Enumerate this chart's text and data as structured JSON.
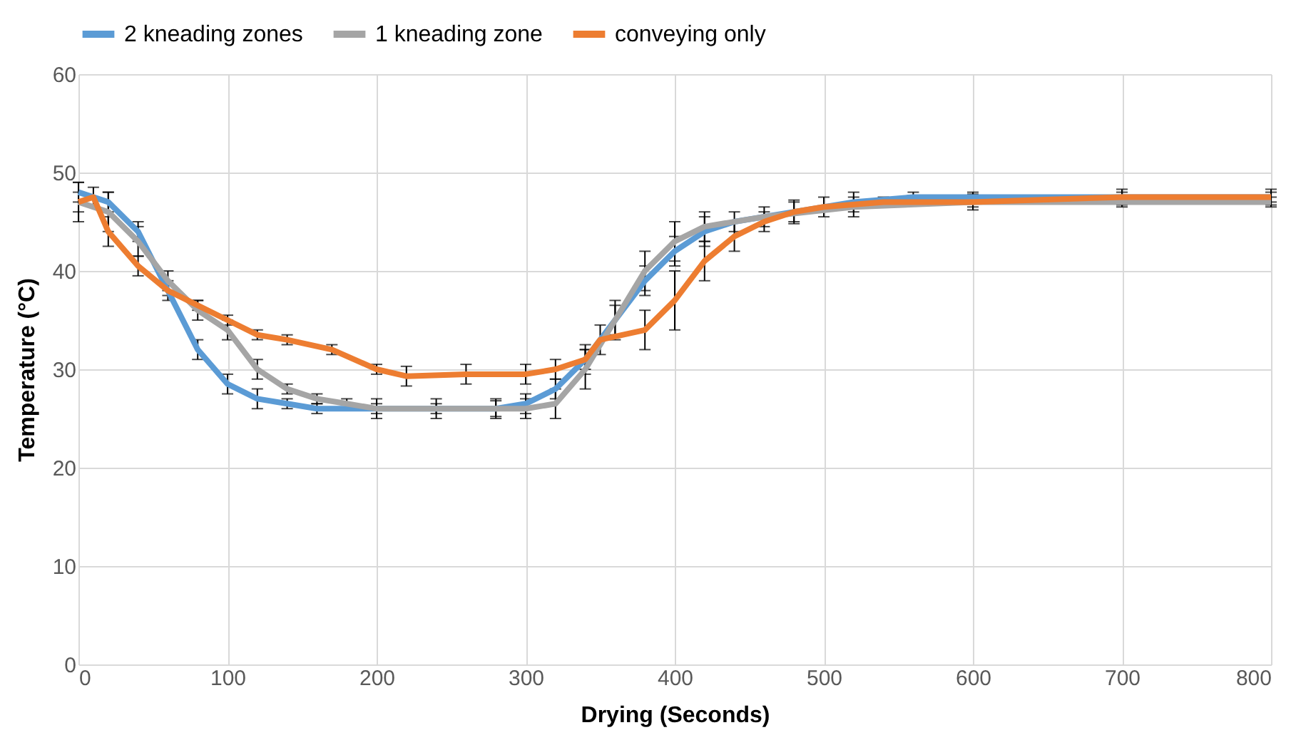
{
  "chart_data": {
    "type": "line",
    "xlabel": "Drying (Seconds)",
    "ylabel": "Temperature (°C)",
    "xlim": [
      0,
      800
    ],
    "ylim": [
      0,
      60
    ],
    "xticks": [
      0,
      100,
      200,
      300,
      400,
      500,
      600,
      700,
      800
    ],
    "yticks": [
      0,
      10,
      20,
      30,
      40,
      50,
      60
    ],
    "grid": true,
    "legend": "top",
    "marker": "none",
    "line_style": "solid",
    "series": [
      {
        "name": "2 kneading zones",
        "color": "#5b9bd5",
        "x": [
          0,
          20,
          40,
          60,
          80,
          100,
          120,
          140,
          160,
          200,
          240,
          280,
          300,
          320,
          340,
          360,
          380,
          400,
          420,
          440,
          480,
          520,
          560,
          600,
          700,
          800
        ],
        "values": [
          48,
          47,
          44,
          38,
          32,
          28.5,
          27,
          26.5,
          26,
          26,
          26,
          26,
          26.5,
          28,
          31,
          35,
          39,
          42,
          44,
          45,
          46,
          47,
          47.5,
          47.5,
          47.5,
          47.5
        ],
        "errors": [
          1,
          1,
          1,
          1,
          1,
          1,
          1,
          0.5,
          0.5,
          0.5,
          0.5,
          0.8,
          1,
          1,
          1,
          1.5,
          1.5,
          1.5,
          1.5,
          1,
          1,
          1,
          0.5,
          0.5,
          0.5,
          0.5
        ]
      },
      {
        "name": "1 kneading zone",
        "color": "#a5a5a5",
        "x": [
          0,
          20,
          40,
          60,
          80,
          100,
          120,
          140,
          160,
          180,
          200,
          240,
          280,
          300,
          320,
          340,
          360,
          380,
          400,
          420,
          460,
          520,
          600,
          700,
          800
        ],
        "values": [
          47,
          46,
          43,
          39,
          36,
          34,
          30,
          28,
          27,
          26.5,
          26,
          26,
          26,
          26,
          26.5,
          30,
          35,
          40,
          43,
          44.5,
          45.5,
          46.5,
          47,
          47,
          47
        ],
        "errors": [
          2,
          2,
          1.5,
          1,
          1,
          1,
          1,
          0.5,
          0.5,
          0.5,
          1,
          1,
          1,
          1,
          1.5,
          2,
          2,
          2,
          2,
          1.5,
          1,
          1,
          0.5,
          0.5,
          0.5
        ]
      },
      {
        "name": "conveying only",
        "color": "#ed7d31",
        "x": [
          0,
          10,
          20,
          40,
          60,
          80,
          100,
          120,
          140,
          170,
          200,
          220,
          260,
          300,
          320,
          340,
          350,
          380,
          400,
          420,
          440,
          460,
          480,
          500,
          540,
          600,
          700,
          800
        ],
        "values": [
          47,
          47.5,
          44,
          40.5,
          38,
          36.5,
          35,
          33.5,
          33,
          32,
          30,
          29.3,
          29.5,
          29.5,
          30,
          31,
          33,
          34,
          37,
          41,
          43.5,
          45,
          46,
          46.5,
          47,
          47,
          47.5,
          47.5
        ],
        "errors": [
          1,
          1,
          1.5,
          1,
          0.5,
          0.5,
          0.5,
          0.5,
          0.5,
          0.5,
          0.5,
          1,
          1,
          1,
          1,
          1.5,
          1.5,
          2,
          3,
          2,
          1.5,
          1,
          1.2,
          1,
          0.5,
          0.8,
          0.8,
          0.8
        ]
      }
    ]
  }
}
